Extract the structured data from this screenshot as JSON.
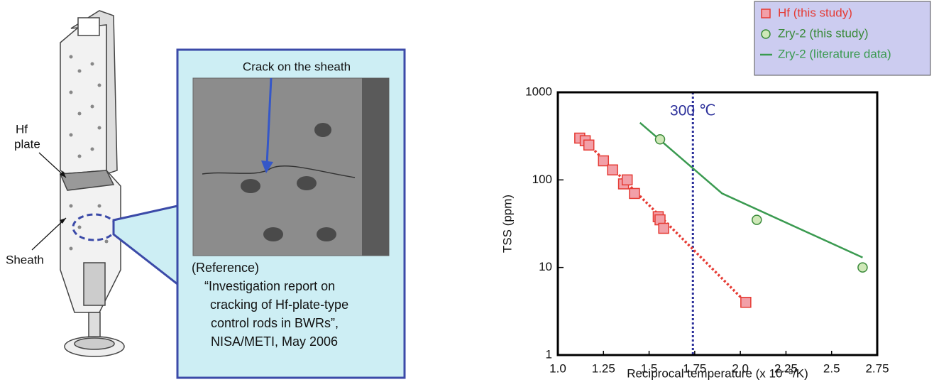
{
  "diagram": {
    "labels": {
      "hf_plate": [
        "Hf",
        "plate"
      ],
      "sheath": "Sheath"
    },
    "callout": {
      "caption": "Crack on the sheath",
      "reference": [
        "(Reference)",
        "“Investigation report on",
        "cracking of Hf-plate-type",
        "control rods in BWRs”,",
        "NISA/METI, May 2006"
      ]
    }
  },
  "chart_data": {
    "type": "scatter",
    "xlabel": "Reciprocal temperature (x 10⁻³/K)",
    "ylabel": "TSS (ppm)",
    "xlim": [
      1.0,
      2.75
    ],
    "xticks": [
      {
        "value": 1.0,
        "label": "1.0"
      },
      1.25,
      {
        "value": 1.5,
        "label": "1.5"
      },
      1.75,
      {
        "value": 2.0,
        "label": "2.0"
      },
      2.25,
      {
        "value": 2.5,
        "label": "2.5"
      },
      2.75
    ],
    "ylim": [
      1,
      1000
    ],
    "yticks": [
      1,
      10,
      100,
      1000
    ],
    "log_y": true,
    "grid": false,
    "legend": "top-right",
    "reference_line": {
      "x": 1.74,
      "label": "300 ℃",
      "color": "#2b2f9a"
    },
    "series": [
      {
        "name": "Hf (this study)",
        "color": "#e53a33",
        "marker": "square",
        "x": [
          1.12,
          1.15,
          1.17,
          1.25,
          1.3,
          1.36,
          1.38,
          1.42,
          1.55,
          1.56,
          1.58,
          2.03
        ],
        "values": [
          300,
          280,
          250,
          165,
          130,
          90,
          100,
          70,
          38,
          35,
          28,
          4
        ],
        "fit": {
          "x": [
            1.12,
            2.03
          ],
          "values": [
            320,
            4
          ]
        }
      },
      {
        "name": "Zry-2 (this study)",
        "color": "#3a8a3a",
        "marker": "circle",
        "x": [
          1.56,
          2.09,
          2.67
        ],
        "values": [
          290,
          35,
          10
        ]
      },
      {
        "name": "Zry-2 (literature data)",
        "color": "#3a9a50",
        "marker": "line",
        "x": [
          1.45,
          1.9,
          2.67
        ],
        "values": [
          450,
          70,
          13
        ]
      }
    ]
  }
}
